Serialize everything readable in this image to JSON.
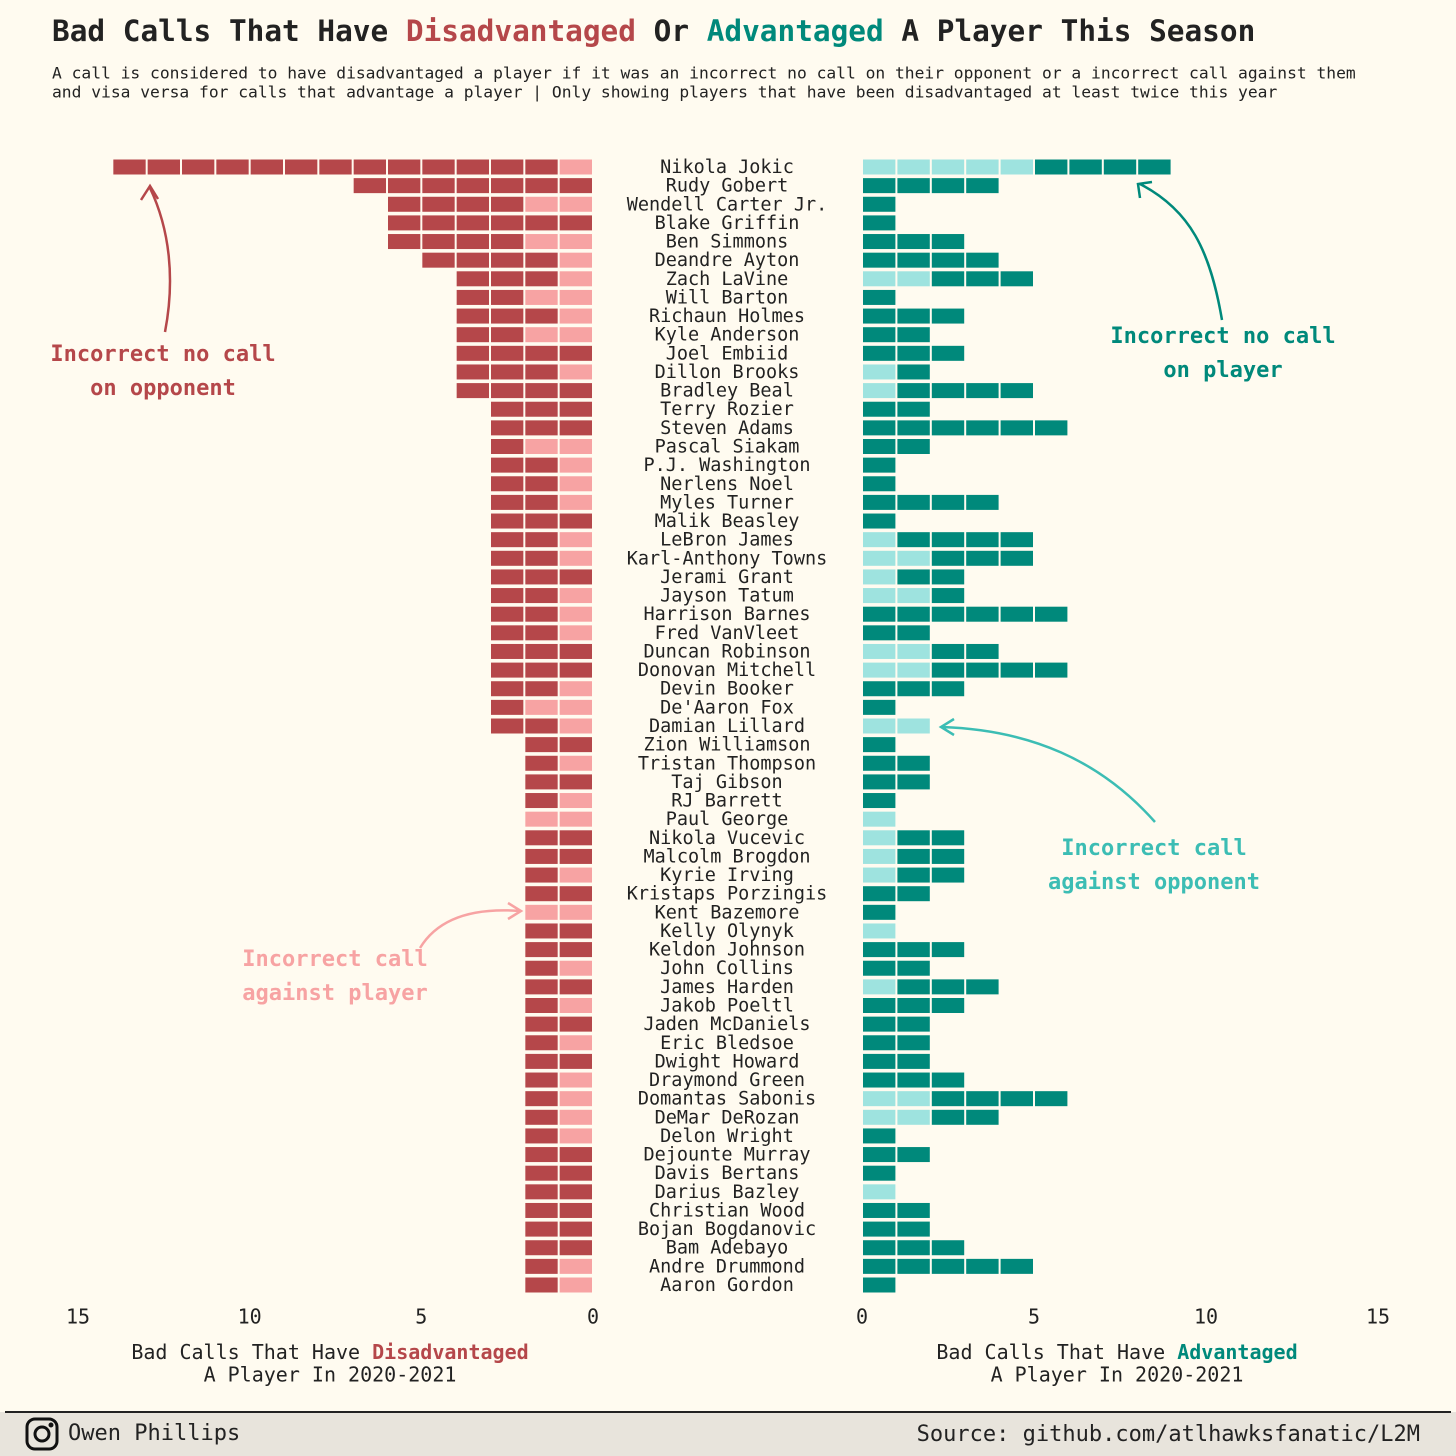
{
  "chart_data": {
    "type": "bar",
    "title": [
      "Bad Calls That Have ",
      "Disadvantaged",
      " Or ",
      "Advantaged",
      " A Player This Season"
    ],
    "subtitle": [
      "A call is considered to have disadvantaged a player if it was an incorrect no call on their opponent or a incorrect call against them",
      "and visa versa for calls that advantage a player | Only showing players that have been disadvantaged at least twice this year"
    ],
    "categories": [
      "Nikola Jokic",
      "Rudy Gobert",
      "Wendell Carter Jr.",
      "Blake Griffin",
      "Ben Simmons",
      "Deandre Ayton",
      "Zach LaVine",
      "Will Barton",
      "Richaun Holmes",
      "Kyle Anderson",
      "Joel Embiid",
      "Dillon Brooks",
      "Bradley Beal",
      "Terry Rozier",
      "Steven Adams",
      "Pascal Siakam",
      "P.J. Washington",
      "Nerlens Noel",
      "Myles Turner",
      "Malik Beasley",
      "LeBron James",
      "Karl-Anthony Towns",
      "Jerami Grant",
      "Jayson Tatum",
      "Harrison Barnes",
      "Fred VanVleet",
      "Duncan Robinson",
      "Donovan Mitchell",
      "Devin Booker",
      "De'Aaron Fox",
      "Damian Lillard",
      "Zion Williamson",
      "Tristan Thompson",
      "Taj Gibson",
      "RJ Barrett",
      "Paul George",
      "Nikola Vucevic",
      "Malcolm Brogdon",
      "Kyrie Irving",
      "Kristaps Porzingis",
      "Kent Bazemore",
      "Kelly Olynyk",
      "Keldon Johnson",
      "John Collins",
      "James Harden",
      "Jakob Poeltl",
      "Jaden McDaniels",
      "Eric Bledsoe",
      "Dwight Howard",
      "Draymond Green",
      "Domantas Sabonis",
      "DeMar DeRozan",
      "Delon Wright",
      "Dejounte Murray",
      "Davis Bertans",
      "Darius Bazley",
      "Christian Wood",
      "Bojan Bogdanovic",
      "Bam Adebayo",
      "Andre Drummond",
      "Aaron Gordon"
    ],
    "left": {
      "xlim": [
        0,
        15
      ],
      "xticks": [
        0,
        5,
        10,
        15
      ],
      "xlabel": [
        "Bad Calls That Have",
        "Disadvantaged",
        "A Player In 2020-2021"
      ],
      "series": [
        {
          "name": "Incorrect call against player",
          "color": "#f7a3a3",
          "values": [
            1,
            0,
            2,
            0,
            2,
            1,
            1,
            2,
            1,
            2,
            0,
            1,
            0,
            0,
            0,
            2,
            1,
            1,
            1,
            0,
            1,
            1,
            0,
            1,
            1,
            1,
            0,
            0,
            1,
            2,
            1,
            0,
            1,
            0,
            1,
            2,
            0,
            0,
            1,
            0,
            2,
            0,
            0,
            1,
            0,
            1,
            0,
            1,
            0,
            1,
            1,
            1,
            1,
            0,
            0,
            0,
            0,
            0,
            0,
            1,
            1
          ]
        },
        {
          "name": "Incorrect no call on opponent",
          "color": "#b5474a",
          "values": [
            13,
            7,
            4,
            6,
            4,
            4,
            3,
            2,
            3,
            2,
            4,
            3,
            4,
            3,
            3,
            1,
            2,
            2,
            2,
            3,
            2,
            2,
            3,
            2,
            2,
            2,
            3,
            3,
            2,
            1,
            2,
            2,
            1,
            2,
            1,
            0,
            2,
            2,
            1,
            2,
            0,
            2,
            2,
            1,
            2,
            1,
            2,
            1,
            2,
            1,
            1,
            1,
            1,
            2,
            2,
            2,
            2,
            2,
            2,
            1,
            1
          ]
        }
      ]
    },
    "right": {
      "xlim": [
        0,
        15
      ],
      "xticks": [
        0,
        5,
        10,
        15
      ],
      "xlabel": [
        "Bad Calls That Have",
        "Advantaged",
        "A Player In 2020-2021"
      ],
      "series": [
        {
          "name": "Incorrect call against opponent",
          "color": "#9ee3df",
          "values": [
            5,
            0,
            0,
            0,
            0,
            0,
            2,
            0,
            0,
            0,
            0,
            1,
            1,
            0,
            0,
            0,
            0,
            0,
            0,
            0,
            1,
            2,
            1,
            2,
            0,
            0,
            2,
            2,
            0,
            0,
            2,
            0,
            0,
            0,
            0,
            1,
            1,
            1,
            1,
            0,
            0,
            1,
            0,
            0,
            1,
            0,
            0,
            0,
            0,
            0,
            2,
            2,
            0,
            0,
            0,
            1,
            0,
            0,
            0,
            0,
            0
          ]
        },
        {
          "name": "Incorrect no call on player",
          "color": "#00897b",
          "values": [
            4,
            4,
            1,
            1,
            3,
            4,
            3,
            1,
            3,
            2,
            3,
            1,
            4,
            2,
            6,
            2,
            1,
            1,
            4,
            1,
            4,
            3,
            2,
            1,
            6,
            2,
            2,
            4,
            3,
            1,
            0,
            1,
            2,
            2,
            1,
            0,
            2,
            2,
            2,
            2,
            1,
            0,
            3,
            2,
            3,
            3,
            2,
            2,
            2,
            3,
            4,
            2,
            1,
            2,
            1,
            0,
            2,
            2,
            3,
            5,
            1
          ]
        }
      ]
    },
    "footer": {
      "author": "Owen Phillips",
      "source": "Source: github.com/atlhawksfanatic/L2M"
    }
  }
}
